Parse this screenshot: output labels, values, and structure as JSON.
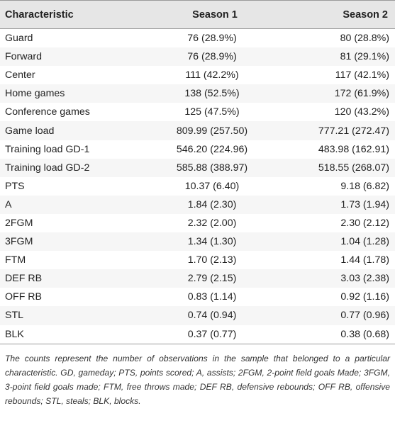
{
  "table": {
    "headers": [
      "Characteristic",
      "Season 1",
      "Season 2"
    ],
    "rows": [
      [
        "Guard",
        "76 (28.9%)",
        "80 (28.8%)"
      ],
      [
        "Forward",
        "76 (28.9%)",
        "81 (29.1%)"
      ],
      [
        "Center",
        "111 (42.2%)",
        "117 (42.1%)"
      ],
      [
        "Home games",
        "138 (52.5%)",
        "172 (61.9%)"
      ],
      [
        "Conference games",
        "125 (47.5%)",
        "120 (43.2%)"
      ],
      [
        "Game load",
        "809.99 (257.50)",
        "777.21 (272.47)"
      ],
      [
        "Training load GD-1",
        "546.20 (224.96)",
        "483.98 (162.91)"
      ],
      [
        "Training load GD-2",
        "585.88 (388.97)",
        "518.55 (268.07)"
      ],
      [
        "PTS",
        "10.37 (6.40)",
        "9.18 (6.82)"
      ],
      [
        "A",
        "1.84 (2.30)",
        "1.73 (1.94)"
      ],
      [
        "2FGM",
        "2.32 (2.00)",
        "2.30 (2.12)"
      ],
      [
        "3FGM",
        "1.34 (1.30)",
        "1.04 (1.28)"
      ],
      [
        "FTM",
        "1.70 (2.13)",
        "1.44 (1.78)"
      ],
      [
        "DEF RB",
        "2.79 (2.15)",
        "3.03 (2.38)"
      ],
      [
        "OFF RB",
        "0.83 (1.14)",
        "0.92 (1.16)"
      ],
      [
        "STL",
        "0.74 (0.94)",
        "0.77 (0.96)"
      ],
      [
        "BLK",
        "0.37 (0.77)",
        "0.38 (0.68)"
      ]
    ]
  },
  "footnote": "The counts represent the number of observations in the sample that belonged to a particular characteristic. GD, gameday; PTS, points scored; A, assists; 2FGM, 2-point field goals Made; 3FGM, 3-point field goals made; FTM, free throws made; DEF RB, defensive rebounds; OFF RB, offensive rebounds; STL, steals; BLK, blocks."
}
